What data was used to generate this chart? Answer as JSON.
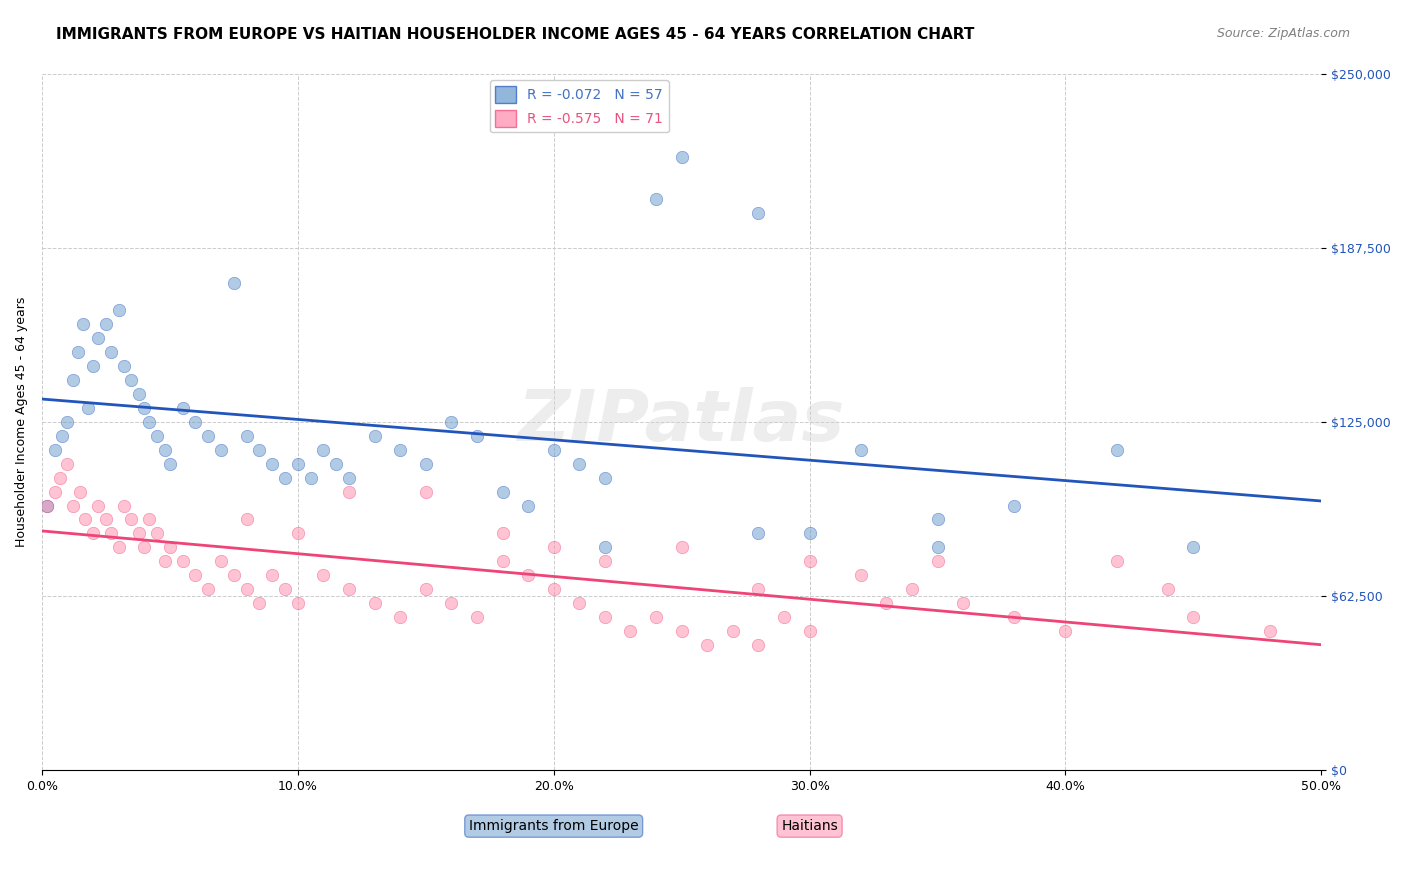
{
  "title": "IMMIGRANTS FROM EUROPE VS HAITIAN HOUSEHOLDER INCOME AGES 45 - 64 YEARS CORRELATION CHART",
  "source": "Source: ZipAtlas.com",
  "xlabel_ticks": [
    "0.0%",
    "10.0%",
    "20.0%",
    "30.0%",
    "40.0%",
    "50.0%"
  ],
  "ylabel_ticks": [
    "$0",
    "$62,500",
    "$125,000",
    "$187,500",
    "$250,000"
  ],
  "ylabel_label": "Householder Income Ages 45 - 64 years",
  "xmin": 0.0,
  "xmax": 0.5,
  "ymin": 0,
  "ymax": 250000,
  "legend_entries": [
    {
      "label": "R = -0.072   N = 57",
      "color": "#aac4e8"
    },
    {
      "label": "R = -0.575   N = 71",
      "color": "#f4b8c8"
    }
  ],
  "legend_line_colors": [
    "#4472c4",
    "#e75480"
  ],
  "watermark": "ZIPatlas",
  "blue_scatter_x": [
    0.002,
    0.005,
    0.008,
    0.01,
    0.012,
    0.014,
    0.016,
    0.018,
    0.02,
    0.022,
    0.025,
    0.027,
    0.03,
    0.032,
    0.035,
    0.038,
    0.04,
    0.042,
    0.045,
    0.048,
    0.05,
    0.055,
    0.06,
    0.065,
    0.07,
    0.075,
    0.08,
    0.085,
    0.09,
    0.095,
    0.1,
    0.105,
    0.11,
    0.115,
    0.12,
    0.13,
    0.14,
    0.15,
    0.16,
    0.17,
    0.18,
    0.19,
    0.2,
    0.21,
    0.22,
    0.25,
    0.28,
    0.32,
    0.35,
    0.38,
    0.22,
    0.28,
    0.35,
    0.42,
    0.45,
    0.24,
    0.3
  ],
  "blue_scatter_y": [
    95000,
    115000,
    120000,
    125000,
    140000,
    150000,
    160000,
    130000,
    145000,
    155000,
    160000,
    150000,
    165000,
    145000,
    140000,
    135000,
    130000,
    125000,
    120000,
    115000,
    110000,
    130000,
    125000,
    120000,
    115000,
    175000,
    120000,
    115000,
    110000,
    105000,
    110000,
    105000,
    115000,
    110000,
    105000,
    120000,
    115000,
    110000,
    125000,
    120000,
    100000,
    95000,
    115000,
    110000,
    105000,
    220000,
    200000,
    115000,
    80000,
    95000,
    80000,
    85000,
    90000,
    115000,
    80000,
    205000,
    85000
  ],
  "pink_scatter_x": [
    0.002,
    0.005,
    0.007,
    0.01,
    0.012,
    0.015,
    0.017,
    0.02,
    0.022,
    0.025,
    0.027,
    0.03,
    0.032,
    0.035,
    0.038,
    0.04,
    0.042,
    0.045,
    0.048,
    0.05,
    0.055,
    0.06,
    0.065,
    0.07,
    0.075,
    0.08,
    0.085,
    0.09,
    0.095,
    0.1,
    0.11,
    0.12,
    0.13,
    0.14,
    0.15,
    0.16,
    0.17,
    0.18,
    0.19,
    0.2,
    0.21,
    0.22,
    0.23,
    0.24,
    0.25,
    0.26,
    0.27,
    0.28,
    0.29,
    0.3,
    0.32,
    0.34,
    0.36,
    0.38,
    0.4,
    0.42,
    0.44,
    0.12,
    0.18,
    0.25,
    0.08,
    0.15,
    0.2,
    0.3,
    0.35,
    0.1,
    0.22,
    0.28,
    0.33,
    0.45,
    0.48
  ],
  "pink_scatter_y": [
    95000,
    100000,
    105000,
    110000,
    95000,
    100000,
    90000,
    85000,
    95000,
    90000,
    85000,
    80000,
    95000,
    90000,
    85000,
    80000,
    90000,
    85000,
    75000,
    80000,
    75000,
    70000,
    65000,
    75000,
    70000,
    65000,
    60000,
    70000,
    65000,
    60000,
    70000,
    65000,
    60000,
    55000,
    65000,
    60000,
    55000,
    75000,
    70000,
    65000,
    60000,
    55000,
    50000,
    55000,
    50000,
    45000,
    50000,
    45000,
    55000,
    50000,
    70000,
    65000,
    60000,
    55000,
    50000,
    75000,
    65000,
    100000,
    85000,
    80000,
    90000,
    100000,
    80000,
    75000,
    75000,
    85000,
    75000,
    65000,
    60000,
    55000,
    50000
  ],
  "title_fontsize": 11,
  "axis_label_fontsize": 9,
  "tick_fontsize": 9,
  "source_fontsize": 9,
  "legend_fontsize": 10,
  "scatter_size": 80,
  "scatter_alpha": 0.5,
  "blue_color": "#6699cc",
  "pink_color": "#ff88aa",
  "blue_line_color": "#2255bb",
  "pink_line_color": "#ee4477",
  "grid_color": "#cccccc",
  "background_color": "#ffffff",
  "ytick_labels": [
    "$0",
    "$62,500",
    "$125,000",
    "$187,500",
    "$250,000"
  ],
  "ytick_values": [
    0,
    62500,
    125000,
    187500,
    250000
  ]
}
